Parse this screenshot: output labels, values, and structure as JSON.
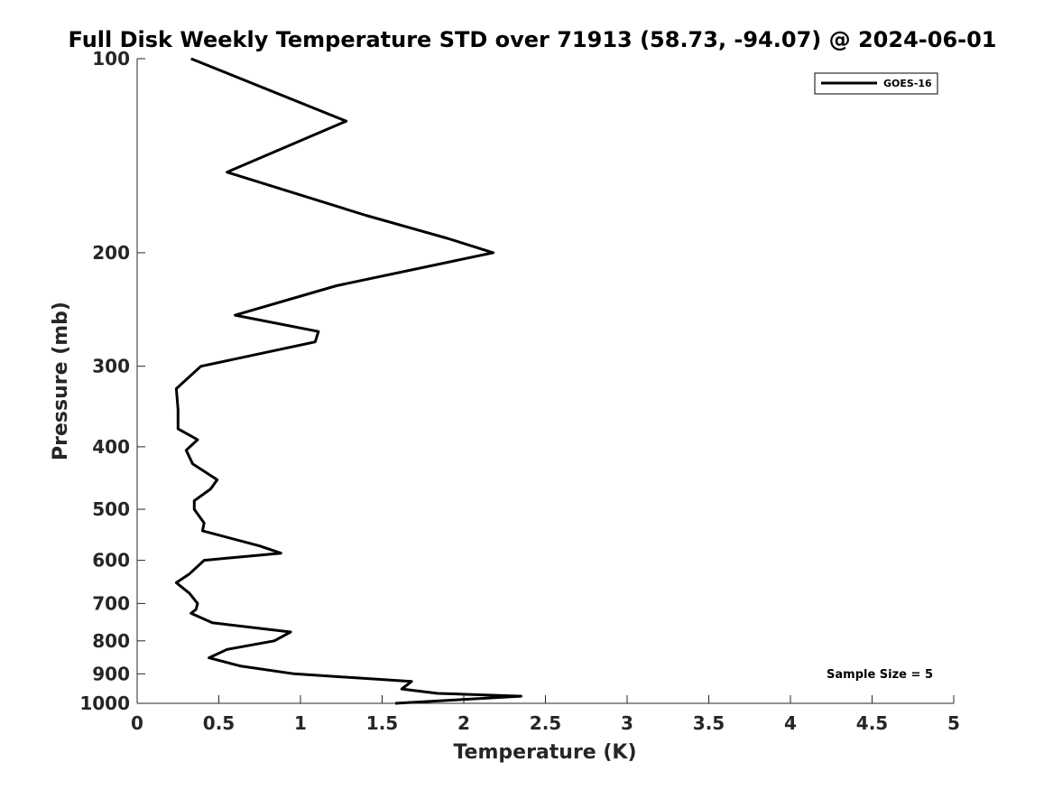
{
  "chart_data": {
    "type": "line",
    "title": "Full Disk Weekly Temperature STD over 71913 (58.73, -94.07) @ 2024-06-01",
    "xlabel": "Temperature (K)",
    "ylabel": "Pressure (mb)",
    "xlim": [
      0,
      5
    ],
    "ylim": [
      100,
      1000
    ],
    "y_scale": "log",
    "y_reversed": true,
    "x_ticks": [
      "0",
      "0.5",
      "1",
      "1.5",
      "2",
      "2.5",
      "3",
      "3.5",
      "4",
      "4.5",
      "5"
    ],
    "y_ticks": [
      "100",
      "200",
      "300",
      "400",
      "500",
      "600",
      "700",
      "800",
      "900",
      "1000"
    ],
    "grid": false,
    "legend_position": "top-right",
    "series": [
      {
        "name": "GOES-16",
        "color": "#000000",
        "points": [
          [
            0.33,
            100
          ],
          [
            1.28,
            125
          ],
          [
            0.55,
            150
          ],
          [
            1.4,
            175
          ],
          [
            1.9,
            190
          ],
          [
            2.18,
            200
          ],
          [
            1.22,
            225
          ],
          [
            0.6,
            250
          ],
          [
            1.11,
            265
          ],
          [
            1.09,
            275
          ],
          [
            0.39,
            300
          ],
          [
            0.24,
            325
          ],
          [
            0.25,
            350
          ],
          [
            0.25,
            375
          ],
          [
            0.37,
            390
          ],
          [
            0.3,
            405
          ],
          [
            0.34,
            425
          ],
          [
            0.49,
            450
          ],
          [
            0.45,
            465
          ],
          [
            0.35,
            485
          ],
          [
            0.35,
            500
          ],
          [
            0.41,
            525
          ],
          [
            0.4,
            540
          ],
          [
            0.75,
            570
          ],
          [
            0.88,
            585
          ],
          [
            0.41,
            600
          ],
          [
            0.32,
            630
          ],
          [
            0.24,
            650
          ],
          [
            0.32,
            675
          ],
          [
            0.37,
            700
          ],
          [
            0.36,
            715
          ],
          [
            0.33,
            725
          ],
          [
            0.46,
            750
          ],
          [
            0.94,
            775
          ],
          [
            0.84,
            800
          ],
          [
            0.55,
            825
          ],
          [
            0.44,
            850
          ],
          [
            0.63,
            875
          ],
          [
            0.96,
            900
          ],
          [
            1.68,
            925
          ],
          [
            1.62,
            950
          ],
          [
            1.84,
            965
          ],
          [
            2.35,
            975
          ],
          [
            1.58,
            1000
          ]
        ]
      }
    ],
    "annotations": [
      "Sample Size = 5"
    ]
  }
}
